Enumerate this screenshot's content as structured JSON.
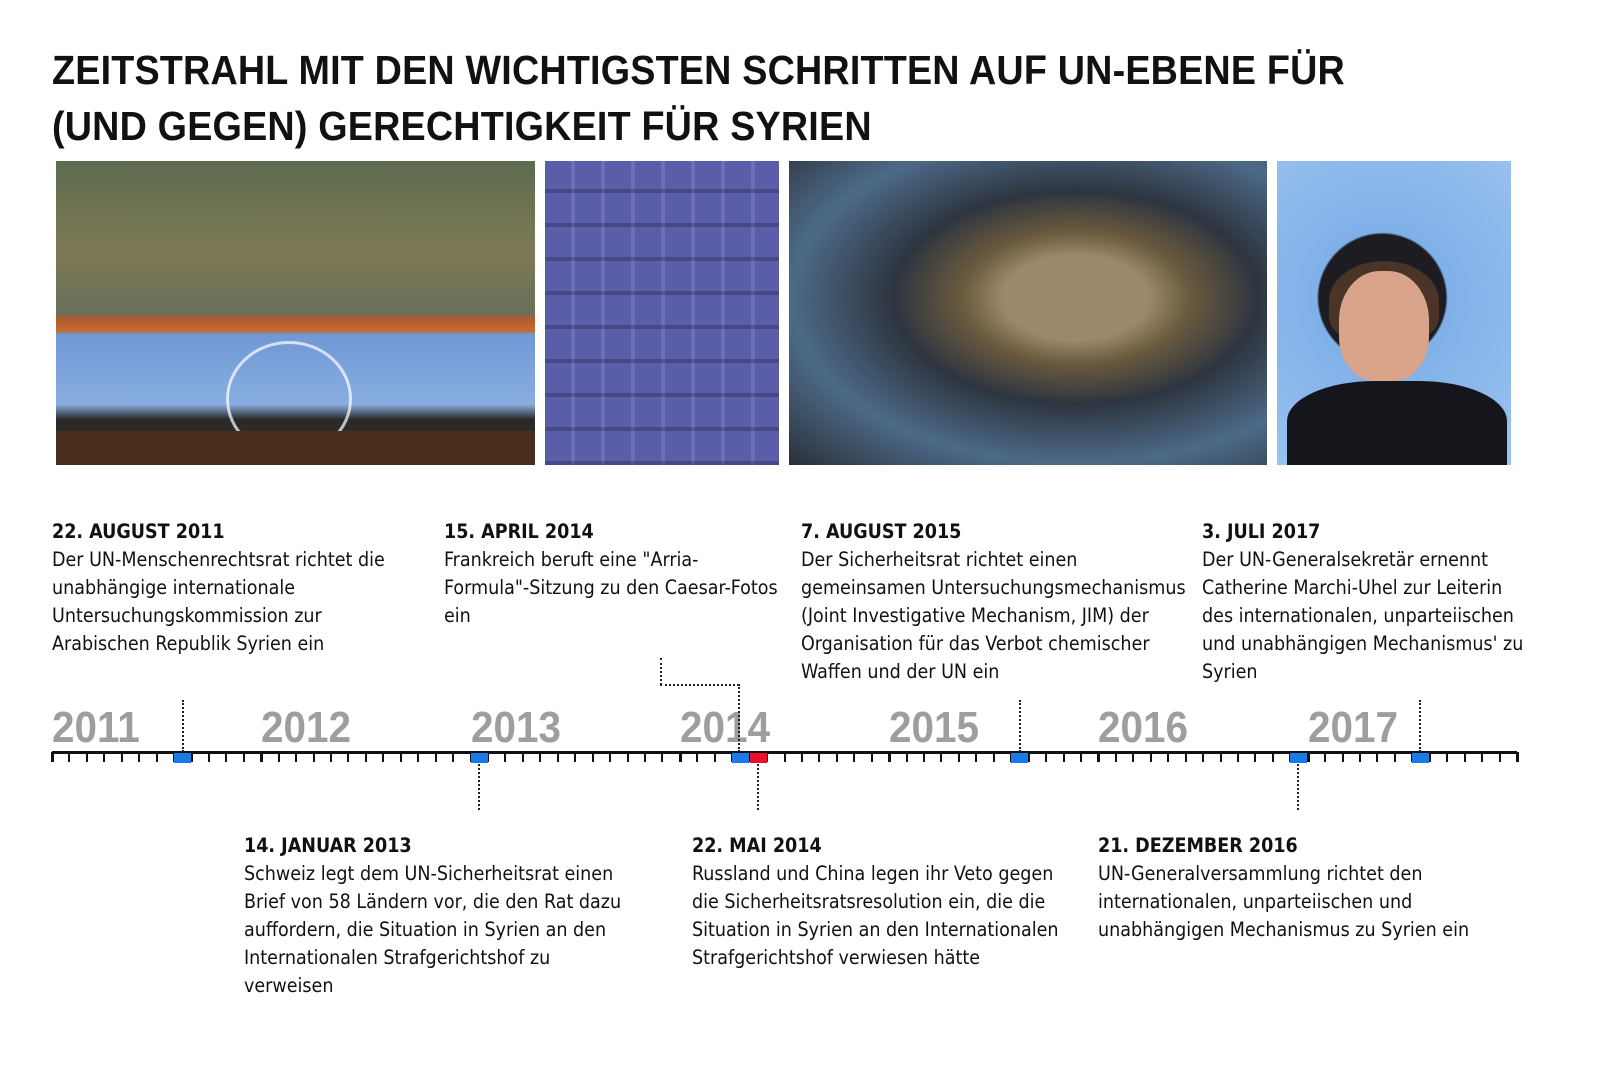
{
  "title": "ZEITSTRAHL MIT DEN WICHTIGSTEN SCHRITTEN AUF UN-EBENE FÜR (UND GEGEN) GERECHTIGKEIT FÜR SYRIEN",
  "colors": {
    "marker_blue": "#1a7be8",
    "marker_red": "#e8102e",
    "year_label": "#9e9e9e"
  },
  "years": [
    "2011",
    "2012",
    "2013",
    "2014",
    "2015",
    "2016",
    "2017"
  ],
  "events_top": [
    {
      "date": "22. AUGUST 2011",
      "text": "Der UN-Menschenrechtsrat richtet die unabhängige internationale Untersuchungskommission zur Arabischen Republik Syrien ein",
      "month": "2011-08",
      "color": "blue"
    },
    {
      "date": "15. APRIL 2014",
      "text": "Frankreich beruft eine \"Arria-Formula\"-Sitzung zu den Caesar-Fotos ein",
      "month": "2014-04",
      "color": "blue"
    },
    {
      "date": "7. AUGUST 2015",
      "text": "Der Sicherheitsrat richtet einen gemeinsamen Untersuchungsmechanismus (Joint Investigative Mechanism, JIM) der Organisation für das Verbot chemischer Waffen und der UN ein",
      "month": "2015-08",
      "color": "blue"
    },
    {
      "date": "3. JULI 2017",
      "text": "Der UN-Generalsekretär ernennt Catherine Marchi-Uhel zur Leiterin des internationalen, unparteiischen und unabhängigen Mechanismus' zu Syrien",
      "month": "2017-07",
      "color": "blue"
    }
  ],
  "events_bottom": [
    {
      "date": "14. JANUAR 2013",
      "text": "Schweiz legt dem UN-Sicherheitsrat einen Brief von 58 Ländern vor, die den Rat dazu auffordern, die Situation in Syrien an den Internationalen Strafgerichtshof zu verweisen",
      "month": "2013-01",
      "color": "blue"
    },
    {
      "date": "22. MAI 2014",
      "text": "Russland und China legen ihr Veto gegen die Sicherheitsratsresolution ein, die die Situation in Syrien an den Internationalen Strafgerichtshof verwiesen hätte",
      "month": "2014-05",
      "color": "red"
    },
    {
      "date": "21. DEZEMBER 2016",
      "text": "UN-Generalversammlung richtet den internationalen, unparteiischen und unabhängigen Mechanismus zu Syrien ein",
      "month": "2016-12",
      "color": "blue"
    }
  ]
}
